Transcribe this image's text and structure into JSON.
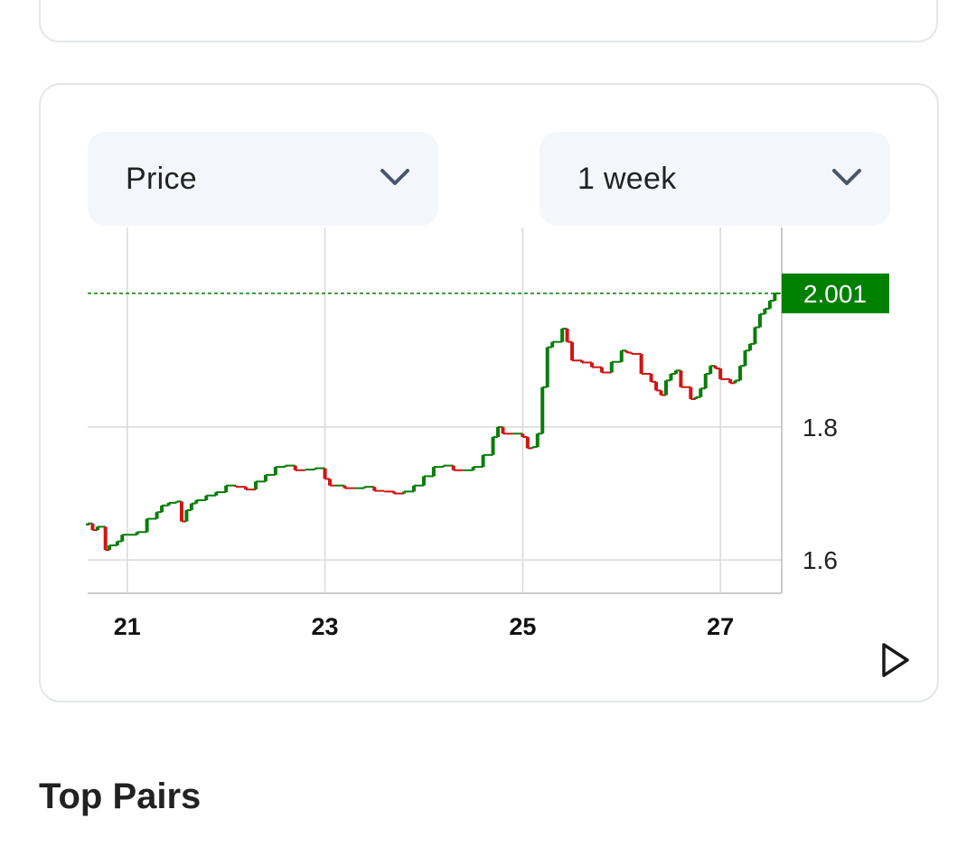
{
  "controls": {
    "metric_select": {
      "value": "Price",
      "icon": "chevron-down-icon"
    },
    "range_select": {
      "value": "1 week",
      "icon": "chevron-down-icon"
    }
  },
  "section": {
    "title": "Top Pairs"
  },
  "play_icon": "play-icon",
  "colors": {
    "up": "#0a7d0a",
    "down": "#d01414",
    "price_tag": "#008000",
    "grid": "#d9d9d9"
  },
  "chart_data": {
    "type": "line",
    "subtype": "candlestick-style step line",
    "x_ticks": [
      "21",
      "23",
      "25",
      "27"
    ],
    "y_ticks": [
      "1.6",
      "1.8"
    ],
    "xlim": [
      20.6,
      27.62
    ],
    "ylim": [
      1.55,
      2.1
    ],
    "current_price": 2.001,
    "current_price_label": "2.001",
    "grid": true,
    "series": [
      {
        "values": [
          [
            20.6,
            1.652
          ],
          [
            20.65,
            1.655
          ],
          [
            20.7,
            1.645
          ],
          [
            20.78,
            1.65
          ],
          [
            20.82,
            1.615
          ],
          [
            20.9,
            1.622
          ],
          [
            20.95,
            1.628
          ],
          [
            21.0,
            1.638
          ],
          [
            21.1,
            1.638
          ],
          [
            21.2,
            1.642
          ],
          [
            21.3,
            1.662
          ],
          [
            21.35,
            1.672
          ],
          [
            21.42,
            1.682
          ],
          [
            21.5,
            1.686
          ],
          [
            21.55,
            1.688
          ],
          [
            21.6,
            1.658
          ],
          [
            21.65,
            1.675
          ],
          [
            21.7,
            1.685
          ],
          [
            21.8,
            1.69
          ],
          [
            21.9,
            1.697
          ],
          [
            22.0,
            1.702
          ],
          [
            22.1,
            1.712
          ],
          [
            22.2,
            1.71
          ],
          [
            22.3,
            1.706
          ],
          [
            22.4,
            1.718
          ],
          [
            22.5,
            1.728
          ],
          [
            22.6,
            1.74
          ],
          [
            22.7,
            1.742
          ],
          [
            22.8,
            1.735
          ],
          [
            22.9,
            1.736
          ],
          [
            23.0,
            1.738
          ],
          [
            23.05,
            1.722
          ],
          [
            23.1,
            1.712
          ],
          [
            23.2,
            1.712
          ],
          [
            23.3,
            1.708
          ],
          [
            23.4,
            1.708
          ],
          [
            23.5,
            1.71
          ],
          [
            23.6,
            1.704
          ],
          [
            23.7,
            1.703
          ],
          [
            23.8,
            1.7
          ],
          [
            23.9,
            1.703
          ],
          [
            24.0,
            1.712
          ],
          [
            24.1,
            1.726
          ],
          [
            24.2,
            1.74
          ],
          [
            24.3,
            1.742
          ],
          [
            24.4,
            1.735
          ],
          [
            24.5,
            1.735
          ],
          [
            24.6,
            1.74
          ],
          [
            24.7,
            1.758
          ],
          [
            24.75,
            1.785
          ],
          [
            24.8,
            1.8
          ],
          [
            24.9,
            1.79
          ],
          [
            25.0,
            1.79
          ],
          [
            25.05,
            1.785
          ],
          [
            25.1,
            1.768
          ],
          [
            25.15,
            1.77
          ],
          [
            25.2,
            1.79
          ],
          [
            25.25,
            1.86
          ],
          [
            25.3,
            1.92
          ],
          [
            25.4,
            1.928
          ],
          [
            25.45,
            1.948
          ],
          [
            25.5,
            1.928
          ],
          [
            25.6,
            1.9
          ],
          [
            25.7,
            1.897
          ],
          [
            25.8,
            1.89
          ],
          [
            25.9,
            1.882
          ],
          [
            26.0,
            1.898
          ],
          [
            26.05,
            1.915
          ],
          [
            26.1,
            1.912
          ],
          [
            26.2,
            1.91
          ],
          [
            26.3,
            1.88
          ],
          [
            26.35,
            1.868
          ],
          [
            26.4,
            1.855
          ],
          [
            26.45,
            1.848
          ],
          [
            26.5,
            1.87
          ],
          [
            26.55,
            1.88
          ],
          [
            26.6,
            1.885
          ],
          [
            26.7,
            1.86
          ],
          [
            26.75,
            1.842
          ],
          [
            26.8,
            1.845
          ],
          [
            26.85,
            1.858
          ],
          [
            26.9,
            1.88
          ],
          [
            26.95,
            1.892
          ],
          [
            27.0,
            1.888
          ],
          [
            27.1,
            1.872
          ],
          [
            27.15,
            1.866
          ],
          [
            27.2,
            1.87
          ],
          [
            27.25,
            1.892
          ],
          [
            27.3,
            1.915
          ],
          [
            27.35,
            1.925
          ],
          [
            27.4,
            1.95
          ],
          [
            27.45,
            1.97
          ],
          [
            27.5,
            1.978
          ],
          [
            27.55,
            1.99
          ],
          [
            27.6,
            2.001
          ]
        ]
      }
    ]
  }
}
